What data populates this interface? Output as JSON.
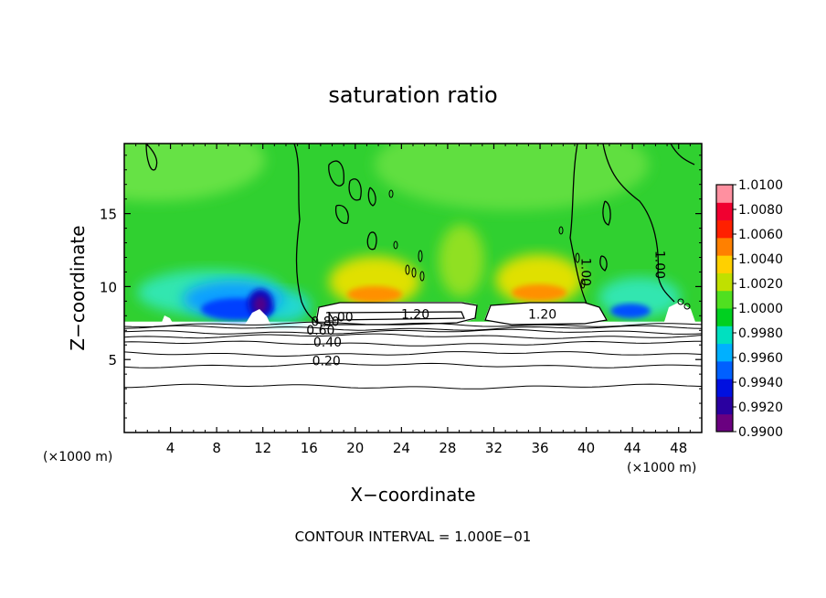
{
  "chart_data": {
    "type": "heatmap",
    "title": "saturation ratio",
    "xlabel": "X−coordinate",
    "ylabel": "Z−coordinate",
    "x_unit_left": "(×1000 m)",
    "x_unit_right": "(×1000 m)",
    "xlim": [
      0,
      50
    ],
    "ylim": [
      0,
      19.8
    ],
    "x_ticks": [
      4,
      8,
      12,
      16,
      20,
      24,
      28,
      32,
      36,
      40,
      44,
      48
    ],
    "y_ticks": [
      5,
      10,
      15
    ],
    "colorbar": {
      "min": 0.99,
      "max": 1.01,
      "labels": [
        "1.0100",
        "1.0080",
        "1.0060",
        "1.0040",
        "1.0020",
        "1.0000",
        "0.9980",
        "0.9960",
        "0.9940",
        "0.9920",
        "0.9900"
      ],
      "colors": [
        "#6a0080",
        "#2a00a0",
        "#0010e0",
        "#0060ff",
        "#00b0ff",
        "#00e0c0",
        "#00d020",
        "#50e020",
        "#c0e000",
        "#ffd000",
        "#ff8000",
        "#ff2000",
        "#f00030",
        "#ff90a0"
      ]
    },
    "contour_labels": [
      {
        "text": "0.20",
        "x": 17.5,
        "z": 4.6
      },
      {
        "text": "0.40",
        "x": 17.6,
        "z": 5.9
      },
      {
        "text": "0.60",
        "x": 17.0,
        "z": 6.7
      },
      {
        "text": "0.80",
        "x": 17.4,
        "z": 7.3
      },
      {
        "text": "1.00",
        "x": 18.6,
        "z": 7.6
      },
      {
        "text": "1.20",
        "x": 25.2,
        "z": 7.8
      },
      {
        "text": "1.20",
        "x": 36.2,
        "z": 7.8
      },
      {
        "text": "1.00",
        "x": 39.6,
        "z": 11.0
      },
      {
        "text": "1.00",
        "x": 46.0,
        "z": 11.5
      }
    ],
    "grid": false,
    "legend": "colorbar-right"
  },
  "footer": {
    "contour_interval": "CONTOUR INTERVAL = 1.000E−01"
  }
}
